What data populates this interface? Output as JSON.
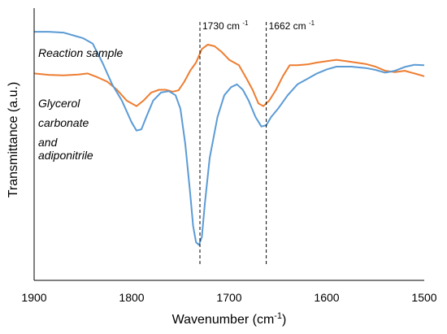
{
  "chart_data": {
    "type": "line",
    "xlabel": "Wavenumber (cm-1)",
    "ylabel": "Transmittance (a.u.)",
    "xlim": [
      1900,
      1500
    ],
    "x_reversed": true,
    "ylim": [
      0,
      1
    ],
    "x_ticks": [
      "1900",
      "1800",
      "1700",
      "1600",
      "1500"
    ],
    "grid": false,
    "annotations": [
      {
        "x": 1730,
        "label": "1730 cm",
        "sup": "-1"
      },
      {
        "x": 1662,
        "label": "1662 cm",
        "sup": "-1"
      }
    ],
    "series": [
      {
        "name": "Reaction sample",
        "color": "#5b9bd5",
        "points": [
          [
            1900,
            0.913
          ],
          [
            1885,
            0.913
          ],
          [
            1870,
            0.91
          ],
          [
            1860,
            0.9
          ],
          [
            1850,
            0.89
          ],
          [
            1840,
            0.87
          ],
          [
            1830,
            0.8
          ],
          [
            1820,
            0.72
          ],
          [
            1810,
            0.66
          ],
          [
            1800,
            0.58
          ],
          [
            1795,
            0.55
          ],
          [
            1790,
            0.555
          ],
          [
            1785,
            0.6
          ],
          [
            1778,
            0.66
          ],
          [
            1770,
            0.69
          ],
          [
            1762,
            0.695
          ],
          [
            1755,
            0.68
          ],
          [
            1750,
            0.63
          ],
          [
            1745,
            0.5
          ],
          [
            1740,
            0.32
          ],
          [
            1737,
            0.2
          ],
          [
            1734,
            0.14
          ],
          [
            1731,
            0.13
          ],
          [
            1728,
            0.16
          ],
          [
            1725,
            0.28
          ],
          [
            1720,
            0.45
          ],
          [
            1712,
            0.6
          ],
          [
            1705,
            0.68
          ],
          [
            1698,
            0.71
          ],
          [
            1692,
            0.72
          ],
          [
            1686,
            0.7
          ],
          [
            1680,
            0.66
          ],
          [
            1673,
            0.6
          ],
          [
            1667,
            0.565
          ],
          [
            1662,
            0.57
          ],
          [
            1657,
            0.6
          ],
          [
            1650,
            0.63
          ],
          [
            1640,
            0.68
          ],
          [
            1630,
            0.72
          ],
          [
            1620,
            0.74
          ],
          [
            1610,
            0.76
          ],
          [
            1600,
            0.775
          ],
          [
            1590,
            0.785
          ],
          [
            1575,
            0.785
          ],
          [
            1560,
            0.78
          ],
          [
            1550,
            0.773
          ],
          [
            1540,
            0.763
          ],
          [
            1530,
            0.77
          ],
          [
            1520,
            0.784
          ],
          [
            1510,
            0.792
          ],
          [
            1500,
            0.79
          ]
        ]
      },
      {
        "name": "Glycerol carbonate and adiponitrile",
        "color": "#ed7d31",
        "points": [
          [
            1900,
            0.76
          ],
          [
            1885,
            0.755
          ],
          [
            1870,
            0.753
          ],
          [
            1855,
            0.756
          ],
          [
            1845,
            0.76
          ],
          [
            1835,
            0.746
          ],
          [
            1825,
            0.73
          ],
          [
            1815,
            0.7
          ],
          [
            1805,
            0.66
          ],
          [
            1795,
            0.64
          ],
          [
            1788,
            0.66
          ],
          [
            1780,
            0.69
          ],
          [
            1772,
            0.7
          ],
          [
            1765,
            0.7
          ],
          [
            1758,
            0.693
          ],
          [
            1752,
            0.698
          ],
          [
            1746,
            0.73
          ],
          [
            1740,
            0.77
          ],
          [
            1734,
            0.8
          ],
          [
            1728,
            0.85
          ],
          [
            1722,
            0.866
          ],
          [
            1715,
            0.86
          ],
          [
            1708,
            0.84
          ],
          [
            1700,
            0.81
          ],
          [
            1690,
            0.79
          ],
          [
            1682,
            0.74
          ],
          [
            1676,
            0.7
          ],
          [
            1670,
            0.65
          ],
          [
            1665,
            0.64
          ],
          [
            1659,
            0.66
          ],
          [
            1652,
            0.7
          ],
          [
            1645,
            0.75
          ],
          [
            1638,
            0.79
          ],
          [
            1630,
            0.79
          ],
          [
            1620,
            0.793
          ],
          [
            1610,
            0.8
          ],
          [
            1600,
            0.805
          ],
          [
            1590,
            0.81
          ],
          [
            1580,
            0.805
          ],
          [
            1570,
            0.8
          ],
          [
            1560,
            0.795
          ],
          [
            1550,
            0.785
          ],
          [
            1540,
            0.77
          ],
          [
            1530,
            0.765
          ],
          [
            1520,
            0.77
          ],
          [
            1510,
            0.76
          ],
          [
            1500,
            0.75
          ]
        ]
      }
    ]
  }
}
